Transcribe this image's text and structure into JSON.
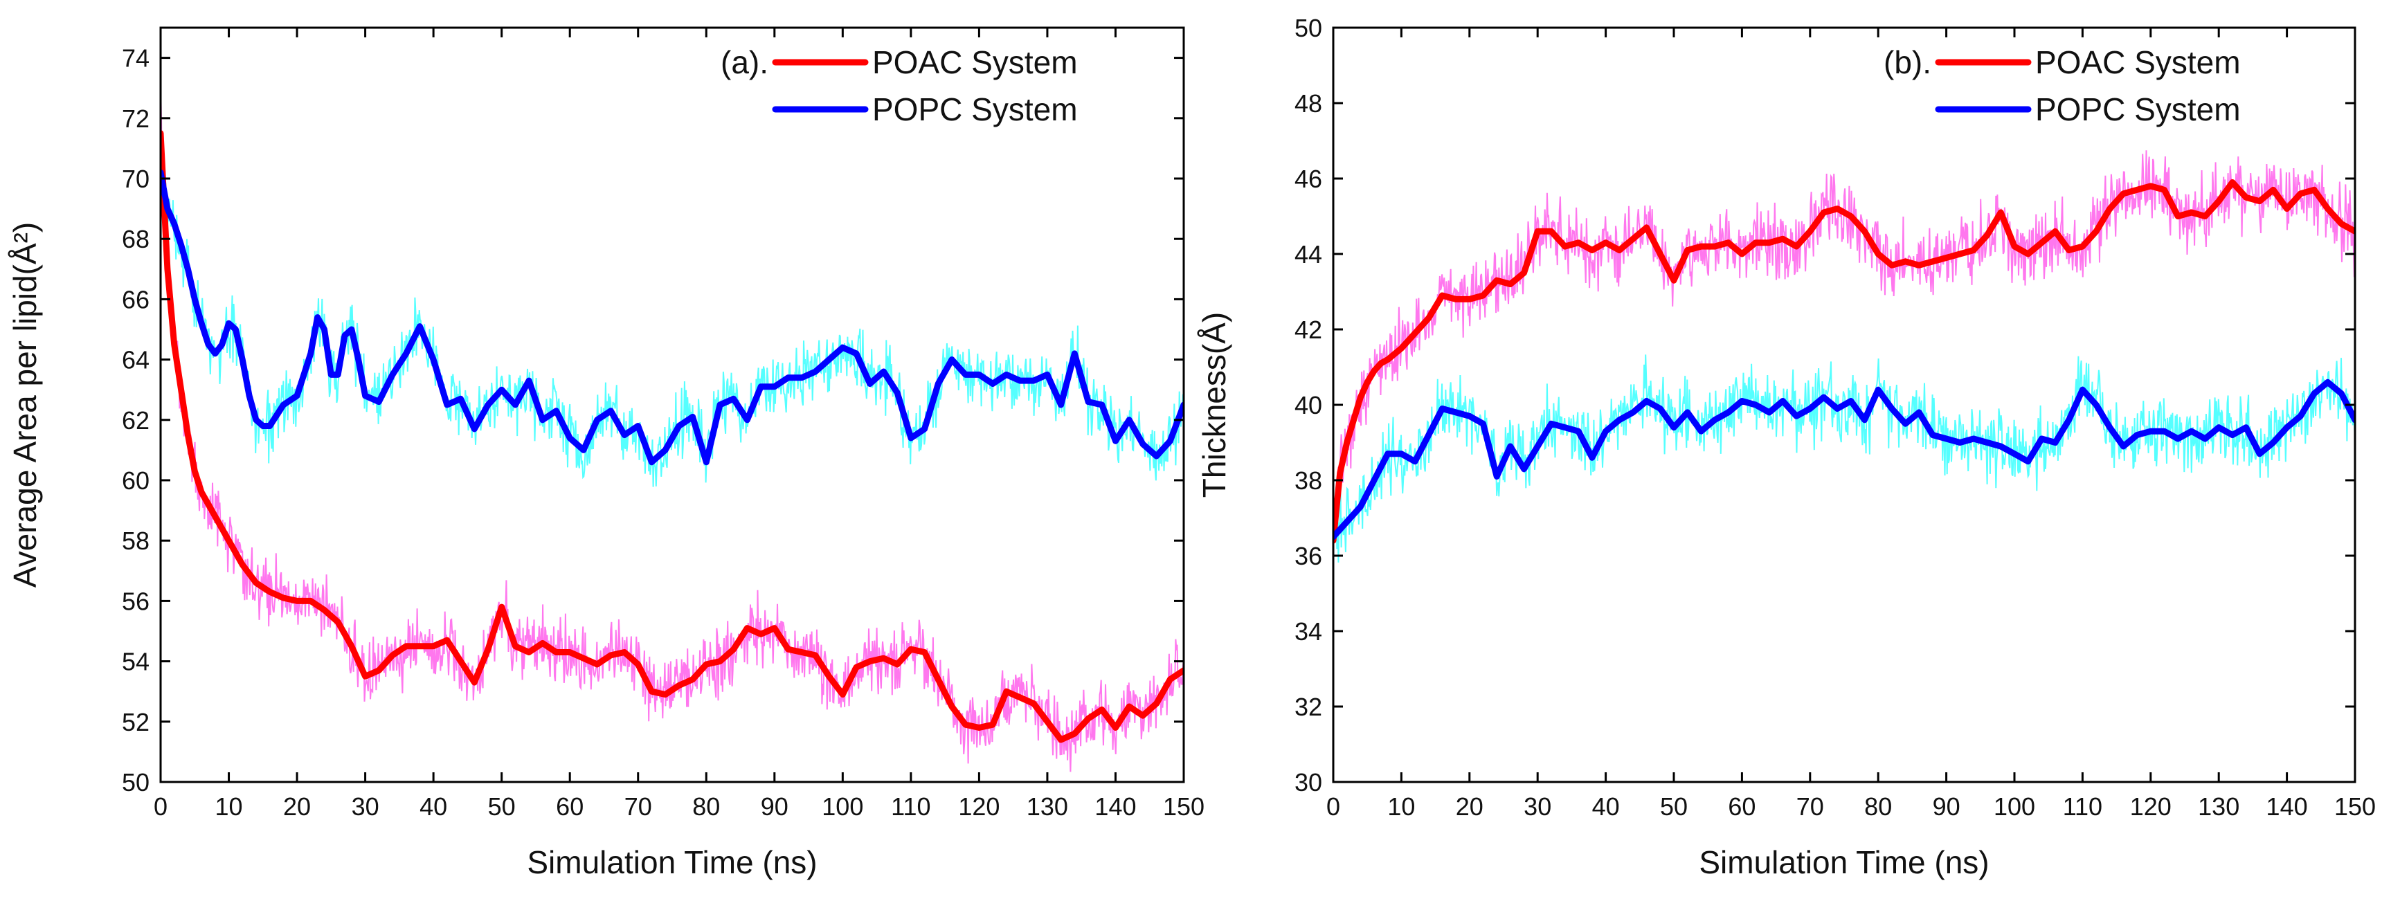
{
  "chart_data": [
    {
      "type": "line",
      "panel": "(a).",
      "xlabel": "Simulation Time (ns)",
      "ylabel": "Average Area per lipid(Å²)",
      "xlim": [
        0,
        150
      ],
      "ylim": [
        50,
        75
      ],
      "xticks": [
        0,
        10,
        20,
        30,
        40,
        50,
        60,
        70,
        80,
        90,
        100,
        110,
        120,
        130,
        140,
        150
      ],
      "yticks": [
        50,
        52,
        54,
        56,
        58,
        60,
        62,
        64,
        66,
        68,
        70,
        72,
        74
      ],
      "legend_position": "top-right",
      "series": [
        {
          "name": "POAC System",
          "smooth_color": "#ff0000",
          "raw_color": "#ff77ee",
          "noise": 0.8,
          "x": [
            0,
            1,
            2,
            3,
            4,
            5,
            6,
            7,
            8,
            10,
            12,
            14,
            16,
            18,
            20,
            22,
            24,
            26,
            28,
            30,
            32,
            34,
            36,
            38,
            40,
            42,
            44,
            46,
            48,
            50,
            52,
            54,
            56,
            58,
            60,
            62,
            64,
            66,
            68,
            70,
            72,
            74,
            76,
            78,
            80,
            82,
            84,
            86,
            88,
            90,
            92,
            94,
            96,
            98,
            100,
            102,
            104,
            106,
            108,
            110,
            112,
            114,
            116,
            118,
            120,
            122,
            124,
            126,
            128,
            130,
            132,
            134,
            136,
            138,
            140,
            142,
            144,
            146,
            148,
            150
          ],
          "values": [
            71.5,
            67,
            64.5,
            63,
            61.5,
            60.3,
            59.6,
            59.2,
            58.8,
            58,
            57.2,
            56.6,
            56.3,
            56.1,
            56.0,
            56.0,
            55.7,
            55.3,
            54.5,
            53.5,
            53.7,
            54.2,
            54.5,
            54.5,
            54.5,
            54.7,
            54.0,
            53.3,
            54.4,
            55.8,
            54.5,
            54.3,
            54.6,
            54.3,
            54.3,
            54.1,
            53.9,
            54.2,
            54.3,
            53.9,
            53.0,
            52.9,
            53.2,
            53.4,
            53.9,
            54.0,
            54.4,
            55.1,
            54.9,
            55.1,
            54.4,
            54.3,
            54.2,
            53.5,
            52.9,
            53.8,
            54.0,
            54.1,
            53.9,
            54.4,
            54.3,
            53.4,
            52.5,
            51.9,
            51.8,
            51.9,
            53.0,
            52.8,
            52.6,
            52.0,
            51.4,
            51.6,
            52.1,
            52.4,
            51.8,
            52.5,
            52.2,
            52.6,
            53.4,
            53.7
          ]
        },
        {
          "name": "POPC System",
          "smooth_color": "#0000ff",
          "raw_color": "#55ffff",
          "noise": 0.8,
          "x": [
            0,
            1,
            2,
            3,
            4,
            5,
            6,
            7,
            8,
            9,
            10,
            11,
            12,
            13,
            14,
            15,
            16,
            18,
            20,
            22,
            23,
            24,
            25,
            26,
            27,
            28,
            29,
            30,
            32,
            34,
            36,
            38,
            40,
            42,
            44,
            46,
            48,
            50,
            52,
            54,
            56,
            58,
            60,
            62,
            64,
            66,
            68,
            70,
            72,
            74,
            76,
            78,
            80,
            82,
            84,
            86,
            88,
            90,
            92,
            94,
            96,
            98,
            100,
            102,
            104,
            106,
            108,
            110,
            112,
            114,
            116,
            118,
            120,
            122,
            124,
            126,
            128,
            130,
            132,
            134,
            136,
            138,
            140,
            142,
            144,
            146,
            148,
            150
          ],
          "values": [
            70.2,
            69,
            68.5,
            67.8,
            67.0,
            66.0,
            65.2,
            64.5,
            64.2,
            64.5,
            65.2,
            65.0,
            64.0,
            62.8,
            62.0,
            61.8,
            61.8,
            62.5,
            62.8,
            64.2,
            65.4,
            65.0,
            63.5,
            63.5,
            64.8,
            65.0,
            64.0,
            62.8,
            62.6,
            63.5,
            64.2,
            65.1,
            64.0,
            62.5,
            62.7,
            61.7,
            62.5,
            63.0,
            62.5,
            63.3,
            62.0,
            62.3,
            61.4,
            61.0,
            62.0,
            62.3,
            61.5,
            61.8,
            60.6,
            61.0,
            61.8,
            62.1,
            60.6,
            62.5,
            62.7,
            62.0,
            63.1,
            63.1,
            63.4,
            63.4,
            63.6,
            64.0,
            64.4,
            64.2,
            63.2,
            63.6,
            62.9,
            61.4,
            61.7,
            63.2,
            64.0,
            63.5,
            63.5,
            63.2,
            63.5,
            63.3,
            63.3,
            63.5,
            62.5,
            64.2,
            62.6,
            62.5,
            61.3,
            62.0,
            61.2,
            60.8,
            61.3,
            62.5
          ]
        }
      ]
    },
    {
      "type": "line",
      "panel": "(b).",
      "xlabel": "Simulation Time (ns)",
      "ylabel": "Thickness(Å)",
      "xlim": [
        0,
        150
      ],
      "ylim": [
        30,
        50
      ],
      "xticks": [
        0,
        10,
        20,
        30,
        40,
        50,
        60,
        70,
        80,
        90,
        100,
        110,
        120,
        130,
        140,
        150
      ],
      "yticks": [
        30,
        32,
        34,
        36,
        38,
        40,
        42,
        44,
        46,
        48,
        50
      ],
      "legend_position": "top-right",
      "series": [
        {
          "name": "POAC System",
          "smooth_color": "#ff0000",
          "raw_color": "#ff77ee",
          "noise": 0.7,
          "x": [
            0,
            1,
            2,
            3,
            4,
            5,
            6,
            7,
            8,
            10,
            12,
            14,
            16,
            18,
            20,
            22,
            24,
            26,
            28,
            30,
            32,
            34,
            36,
            38,
            40,
            42,
            44,
            46,
            48,
            50,
            52,
            54,
            56,
            58,
            60,
            62,
            64,
            66,
            68,
            70,
            72,
            74,
            76,
            78,
            80,
            82,
            84,
            86,
            88,
            90,
            92,
            94,
            96,
            98,
            100,
            102,
            104,
            106,
            108,
            110,
            112,
            114,
            116,
            118,
            120,
            122,
            124,
            126,
            128,
            130,
            132,
            134,
            136,
            138,
            140,
            142,
            144,
            146,
            148,
            150
          ],
          "values": [
            36.4,
            38.2,
            39.0,
            39.6,
            40.2,
            40.6,
            40.9,
            41.1,
            41.2,
            41.5,
            41.9,
            42.3,
            42.9,
            42.8,
            42.8,
            42.9,
            43.3,
            43.2,
            43.5,
            44.6,
            44.6,
            44.2,
            44.3,
            44.1,
            44.3,
            44.1,
            44.4,
            44.7,
            44.0,
            43.3,
            44.1,
            44.2,
            44.2,
            44.3,
            44.0,
            44.3,
            44.3,
            44.4,
            44.2,
            44.6,
            45.1,
            45.2,
            45.0,
            44.6,
            44.0,
            43.7,
            43.8,
            43.7,
            43.8,
            43.9,
            44.0,
            44.1,
            44.5,
            45.1,
            44.2,
            44.0,
            44.3,
            44.6,
            44.1,
            44.2,
            44.6,
            45.2,
            45.6,
            45.7,
            45.8,
            45.7,
            45.0,
            45.1,
            45.0,
            45.4,
            45.9,
            45.5,
            45.4,
            45.7,
            45.2,
            45.6,
            45.7,
            45.2,
            44.8,
            44.6
          ]
        },
        {
          "name": "POPC System",
          "smooth_color": "#0000ff",
          "raw_color": "#55ffff",
          "noise": 0.7,
          "x": [
            0,
            2,
            4,
            6,
            8,
            10,
            12,
            14,
            16,
            18,
            20,
            22,
            24,
            26,
            28,
            30,
            32,
            34,
            36,
            38,
            40,
            42,
            44,
            46,
            48,
            50,
            52,
            54,
            56,
            58,
            60,
            62,
            64,
            66,
            68,
            70,
            72,
            74,
            76,
            78,
            80,
            82,
            84,
            86,
            88,
            90,
            92,
            94,
            96,
            98,
            100,
            102,
            104,
            106,
            108,
            110,
            112,
            114,
            116,
            118,
            120,
            122,
            124,
            126,
            128,
            130,
            132,
            134,
            136,
            138,
            140,
            142,
            144,
            146,
            148,
            150
          ],
          "values": [
            36.5,
            36.9,
            37.3,
            38.0,
            38.7,
            38.7,
            38.5,
            39.2,
            39.9,
            39.8,
            39.7,
            39.5,
            38.1,
            38.9,
            38.3,
            38.9,
            39.5,
            39.4,
            39.3,
            38.6,
            39.3,
            39.6,
            39.8,
            40.1,
            39.9,
            39.4,
            39.8,
            39.3,
            39.6,
            39.8,
            40.1,
            40.0,
            39.8,
            40.1,
            39.7,
            39.9,
            40.2,
            39.9,
            40.1,
            39.6,
            40.4,
            39.9,
            39.5,
            39.8,
            39.2,
            39.1,
            39.0,
            39.1,
            39.0,
            38.9,
            38.7,
            38.5,
            39.1,
            39.0,
            39.6,
            40.4,
            40.0,
            39.4,
            38.9,
            39.2,
            39.3,
            39.3,
            39.1,
            39.3,
            39.1,
            39.4,
            39.2,
            39.4,
            38.7,
            39.0,
            39.4,
            39.7,
            40.3,
            40.6,
            40.3,
            39.6
          ]
        }
      ]
    }
  ]
}
